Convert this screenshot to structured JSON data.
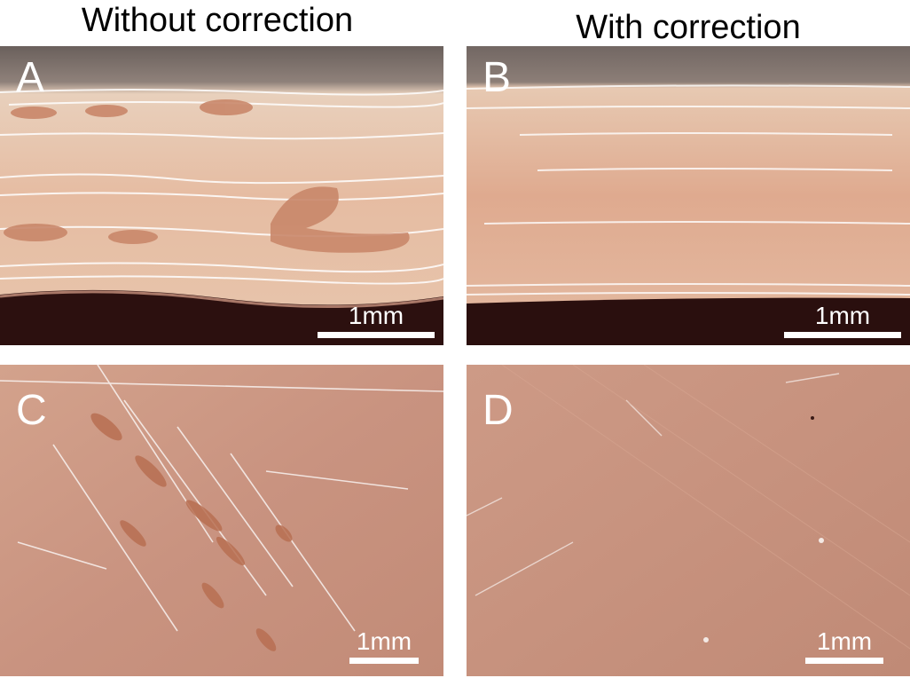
{
  "columns": {
    "left_title": "Without correction",
    "right_title": "With correction"
  },
  "panels": [
    {
      "letter": "A",
      "scale_label": "1mm"
    },
    {
      "letter": "B",
      "scale_label": "1mm"
    },
    {
      "letter": "C",
      "scale_label": "1mm"
    },
    {
      "letter": "D",
      "scale_label": "1mm"
    }
  ],
  "colors": {
    "background_top": "#6f6460",
    "material_light": "#e9c2aa",
    "material_base": "#d6a08a",
    "surface_base": "#c99380",
    "void": "#b9745a",
    "substrate_dark": "#2a0f0e",
    "scale_bar": "#ffffff"
  }
}
